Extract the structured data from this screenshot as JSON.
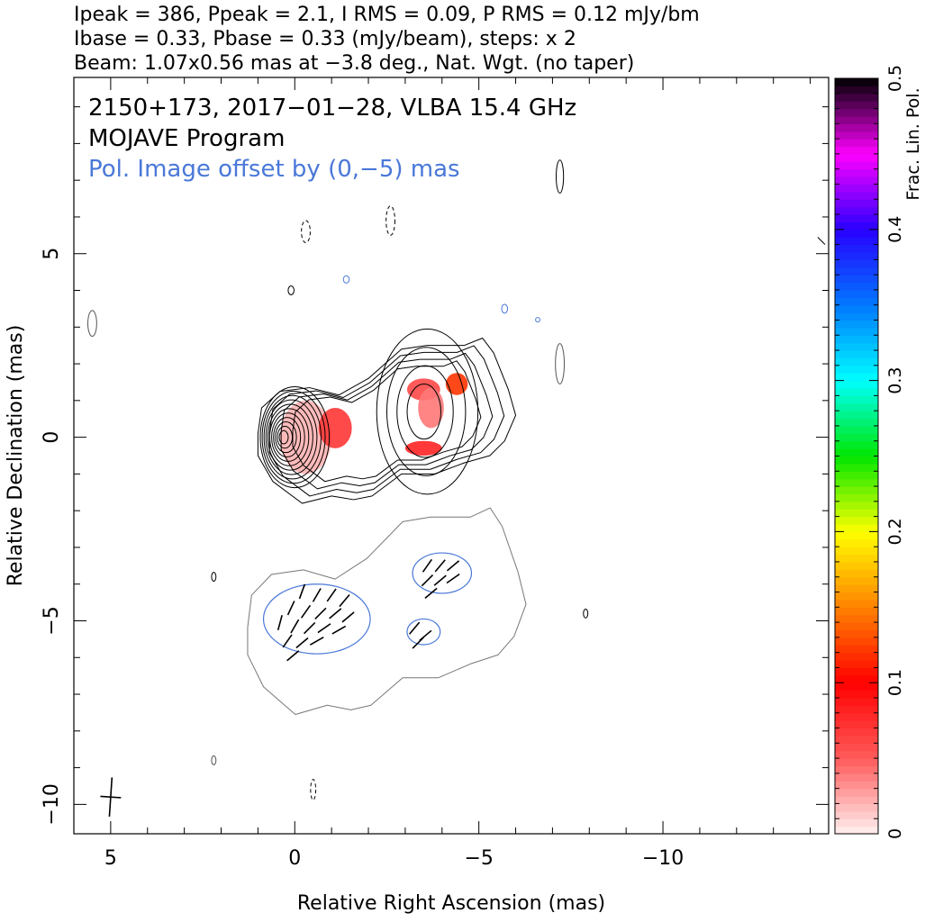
{
  "header_lines": [
    "Ipeak = 386, Ppeak = 2.1, I RMS = 0.09, P RMS = 0.12 mJy/bm",
    "Ibase = 0.33, Pbase = 0.33 (mJy/beam), steps: x 2",
    "Beam: 1.07x0.56 mas at −3.8 deg., Nat. Wgt. (no taper)"
  ],
  "annotations": {
    "source": "2150+173, 2017−01−28, VLBA 15.4 GHz",
    "program": "MOJAVE Program",
    "pol_offset": "Pol. Image offset by (0,−5) mas",
    "pol_offset_color": "#4a78d8"
  },
  "chart_data": {
    "type": "contour",
    "xlabel": "Relative Right Ascension (mas)",
    "ylabel": "Relative Declination (mas)",
    "xlim": [
      6,
      -14.5
    ],
    "ylim": [
      -10.8,
      9.8
    ],
    "x_ticks": [
      5,
      0,
      -5,
      -10
    ],
    "x_tick_labels": [
      "5",
      "0",
      "−5",
      "−10"
    ],
    "y_ticks": [
      5,
      0,
      -5,
      -10
    ],
    "y_tick_labels": [
      "5",
      "0",
      "−5",
      "−10"
    ],
    "total_intensity": {
      "peak_mJy_per_beam": 386,
      "rms_mJy_per_beam": 0.09,
      "base_mJy_per_beam": 0.33,
      "contour_step_factor": 2,
      "components": [
        {
          "x": 0.0,
          "y": 0.0,
          "major": 1.1,
          "minor": 0.75,
          "levels": 11
        },
        {
          "x": -3.6,
          "y": 0.7,
          "major": 1.8,
          "minor": 1.1,
          "levels": 4
        }
      ],
      "jet_outline": [
        [
          1.0,
          0.1
        ],
        [
          0.9,
          0.8
        ],
        [
          0.4,
          1.25
        ],
        [
          -0.4,
          1.35
        ],
        [
          -1.2,
          1.15
        ],
        [
          -2.0,
          1.6
        ],
        [
          -2.9,
          2.4
        ],
        [
          -3.6,
          2.5
        ],
        [
          -4.6,
          2.5
        ],
        [
          -5.1,
          2.7
        ],
        [
          -5.4,
          2.3
        ],
        [
          -5.6,
          1.8
        ],
        [
          -5.8,
          1.3
        ],
        [
          -6.0,
          0.6
        ],
        [
          -5.7,
          -0.1
        ],
        [
          -5.3,
          -0.5
        ],
        [
          -4.6,
          -0.7
        ],
        [
          -3.8,
          -1.0
        ],
        [
          -2.9,
          -1.0
        ],
        [
          -2.1,
          -1.6
        ],
        [
          -1.6,
          -1.7
        ],
        [
          -1.0,
          -1.6
        ],
        [
          -0.2,
          -1.8
        ],
        [
          0.6,
          -1.2
        ],
        [
          1.0,
          -0.5
        ]
      ]
    },
    "fractional_polarization_colorbar": {
      "label": "Frac. Lin. Pol.",
      "range": [
        0,
        0.5
      ],
      "ticks": [
        0,
        0.1,
        0.2,
        0.3,
        0.4,
        0.5
      ],
      "tick_labels": [
        "0",
        "0.1",
        "0.2",
        "0.3",
        "0.4",
        "0.5"
      ]
    },
    "fractional_polarization_patches": [
      {
        "x": -0.3,
        "y": 0.0,
        "rx": 0.7,
        "ry": 1.0,
        "frac": 0.02
      },
      {
        "x": -1.1,
        "y": 0.25,
        "rx": 0.45,
        "ry": 0.55,
        "frac": 0.07
      },
      {
        "x": -3.5,
        "y": 1.3,
        "rx": 0.45,
        "ry": 0.3,
        "frac": 0.06
      },
      {
        "x": -4.4,
        "y": 1.45,
        "rx": 0.3,
        "ry": 0.3,
        "frac": 0.12
      },
      {
        "x": -3.7,
        "y": 0.8,
        "rx": 0.35,
        "ry": 0.55,
        "frac": 0.04
      },
      {
        "x": -3.5,
        "y": -0.3,
        "rx": 0.5,
        "ry": 0.2,
        "frac": 0.08
      }
    ],
    "polarized_intensity": {
      "offset_mas": [
        0,
        -5
      ],
      "peak_mJy_per_beam": 2.1,
      "rms_mJy_per_beam": 0.12,
      "base_mJy_per_beam": 0.33,
      "regions": [
        {
          "x": -0.6,
          "y": -4.95,
          "rx": 1.45,
          "ry": 0.95
        },
        {
          "x": -4.0,
          "y": -3.7,
          "rx": 0.8,
          "ry": 0.55
        },
        {
          "x": -3.5,
          "y": -5.3,
          "rx": 0.45,
          "ry": 0.35
        }
      ]
    },
    "evpa_vectors": [
      {
        "x": -0.2,
        "y": -4.2,
        "angle_deg": 70
      },
      {
        "x": -0.6,
        "y": -4.3,
        "angle_deg": 60
      },
      {
        "x": -1.0,
        "y": -4.3,
        "angle_deg": 55
      },
      {
        "x": -1.35,
        "y": -4.45,
        "angle_deg": 50
      },
      {
        "x": 0.1,
        "y": -4.65,
        "angle_deg": 65
      },
      {
        "x": -0.3,
        "y": -4.75,
        "angle_deg": 55
      },
      {
        "x": -0.7,
        "y": -4.8,
        "angle_deg": 45
      },
      {
        "x": -1.1,
        "y": -4.8,
        "angle_deg": 40
      },
      {
        "x": -1.45,
        "y": -4.9,
        "angle_deg": 40
      },
      {
        "x": 0.4,
        "y": -5.05,
        "angle_deg": 75
      },
      {
        "x": 0.0,
        "y": -5.15,
        "angle_deg": 60
      },
      {
        "x": -0.4,
        "y": -5.2,
        "angle_deg": 45
      },
      {
        "x": -0.8,
        "y": -5.2,
        "angle_deg": 35
      },
      {
        "x": -1.2,
        "y": -5.25,
        "angle_deg": 30
      },
      {
        "x": 0.2,
        "y": -5.55,
        "angle_deg": 55
      },
      {
        "x": -0.2,
        "y": -5.6,
        "angle_deg": 40
      },
      {
        "x": -0.6,
        "y": -5.55,
        "angle_deg": 30
      },
      {
        "x": 0.05,
        "y": -5.95,
        "angle_deg": 40
      },
      {
        "x": -3.6,
        "y": -3.5,
        "angle_deg": 55
      },
      {
        "x": -3.95,
        "y": -3.5,
        "angle_deg": 50
      },
      {
        "x": -4.3,
        "y": -3.5,
        "angle_deg": 40
      },
      {
        "x": -3.6,
        "y": -3.9,
        "angle_deg": 45
      },
      {
        "x": -3.95,
        "y": -3.9,
        "angle_deg": 40
      },
      {
        "x": -4.3,
        "y": -3.85,
        "angle_deg": 35
      },
      {
        "x": -3.7,
        "y": -4.25,
        "angle_deg": 40
      },
      {
        "x": -3.25,
        "y": -5.2,
        "angle_deg": 50
      },
      {
        "x": -3.55,
        "y": -5.4,
        "angle_deg": 40
      },
      {
        "x": -3.35,
        "y": -5.6,
        "angle_deg": 45
      }
    ],
    "noise_contours": [
      {
        "x": 5.5,
        "y": 3.1,
        "rx": 0.12,
        "ry": 0.35,
        "dashed": false,
        "color": "#555555"
      },
      {
        "x": -7.2,
        "y": 2.0,
        "rx": 0.12,
        "ry": 0.55,
        "dashed": false,
        "color": "#555555"
      },
      {
        "x": -7.2,
        "y": 7.1,
        "rx": 0.1,
        "ry": 0.45,
        "dashed": false,
        "color": "#000000"
      },
      {
        "x": -0.3,
        "y": 5.6,
        "rx": 0.12,
        "ry": 0.3,
        "dashed": true,
        "color": "#000000"
      },
      {
        "x": -2.6,
        "y": 5.9,
        "rx": 0.12,
        "ry": 0.4,
        "dashed": true,
        "color": "#000000"
      },
      {
        "x": 0.1,
        "y": 4.0,
        "rx": 0.08,
        "ry": 0.12,
        "dashed": false,
        "color": "#000000"
      },
      {
        "x": -1.4,
        "y": 4.3,
        "rx": 0.08,
        "ry": 0.1,
        "dashed": false,
        "color": "#4a78d8"
      },
      {
        "x": -5.7,
        "y": 3.5,
        "rx": 0.08,
        "ry": 0.12,
        "dashed": false,
        "color": "#4a78d8"
      },
      {
        "x": -6.6,
        "y": 3.2,
        "rx": 0.06,
        "ry": 0.06,
        "dashed": false,
        "color": "#4a78d8"
      },
      {
        "x": 2.2,
        "y": -3.8,
        "rx": 0.06,
        "ry": 0.12,
        "dashed": false,
        "color": "#000000"
      },
      {
        "x": -7.9,
        "y": -4.8,
        "rx": 0.06,
        "ry": 0.12,
        "dashed": false,
        "color": "#000000"
      },
      {
        "x": 2.2,
        "y": -8.8,
        "rx": 0.06,
        "ry": 0.12,
        "dashed": false,
        "color": "#555555"
      },
      {
        "x": -0.5,
        "y": -9.6,
        "rx": 0.07,
        "ry": 0.28,
        "dashed": true,
        "color": "#000000"
      },
      {
        "x": -14.4,
        "y": 5.3,
        "rx": 0.0,
        "ry": 0.0,
        "dashed": false,
        "color": "#000000"
      }
    ],
    "beam": {
      "x": 5.0,
      "y": -9.8,
      "major_mas": 1.07,
      "minor_mas": 0.56,
      "pa_deg": -3.8
    },
    "colors": {
      "total_intensity_contour": "#000000",
      "polarized_contour": "#4a78d8",
      "outer_offset_contour": "#777777",
      "evpa_vector": "#000000"
    }
  }
}
